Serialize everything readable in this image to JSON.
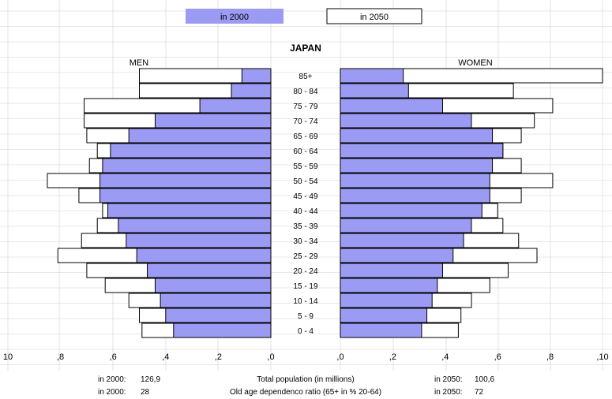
{
  "colors": {
    "series_2000": "#9b9bf3",
    "series_2050": "#ffffff",
    "outline": "#000000",
    "grid": "#d0d0d0"
  },
  "legend": {
    "item_2000": "in 2000",
    "item_2050": "in 2050"
  },
  "footer": {
    "row1": {
      "left_label": "in 2000:",
      "left_value": "126,9",
      "center": "Total population (in millions)",
      "right_label": "in 2050:",
      "right_value": "100,6"
    },
    "row2": {
      "left_label": "in 2000:",
      "left_value": "28",
      "center": "Old age dependenco ratio (65+ in % 20-64)",
      "right_label": "in 2050:",
      "right_value": "72"
    }
  },
  "chart_data": {
    "type": "bar",
    "orientation": "horizontal-pyramid",
    "title": "JAPAN",
    "men_label": "MEN",
    "women_label": "WOMEN",
    "categories": [
      "85+",
      "80 - 84",
      "75 - 79",
      "70 - 74",
      "65 - 69",
      "60 - 64",
      "55 - 59",
      "50 - 54",
      "45 - 49",
      "40 - 44",
      "35 - 39",
      "30 - 34",
      "25 - 29",
      "20 - 24",
      "15 - 19",
      "10 - 14",
      "5 - 9",
      "0 - 4"
    ],
    "xlim": [
      0,
      1.0
    ],
    "x_ticks_men": [
      "10",
      ",8",
      ",6",
      ",4",
      ",2",
      ",0"
    ],
    "x_ticks_women": [
      ",0",
      ",2",
      ",4",
      ",6",
      ",8",
      ",10"
    ],
    "tick_values_men": [
      1.0,
      0.8,
      0.6,
      0.4,
      0.2,
      0.0
    ],
    "tick_values_women": [
      0.0,
      0.2,
      0.4,
      0.6,
      0.8,
      1.0
    ],
    "legend_position": "top",
    "series": [
      {
        "name": "in 2000",
        "men": [
          0.11,
          0.15,
          0.27,
          0.44,
          0.54,
          0.61,
          0.64,
          0.65,
          0.65,
          0.62,
          0.58,
          0.55,
          0.51,
          0.47,
          0.44,
          0.42,
          0.4,
          0.37
        ],
        "women": [
          0.24,
          0.26,
          0.39,
          0.5,
          0.58,
          0.62,
          0.58,
          0.57,
          0.57,
          0.54,
          0.5,
          0.47,
          0.43,
          0.39,
          0.37,
          0.35,
          0.33,
          0.31
        ]
      },
      {
        "name": "in 2050",
        "men": [
          0.5,
          0.5,
          0.71,
          0.71,
          0.7,
          0.66,
          0.69,
          0.85,
          0.73,
          0.64,
          0.66,
          0.72,
          0.81,
          0.7,
          0.63,
          0.54,
          0.5,
          0.49
        ],
        "women": [
          1.0,
          0.66,
          0.81,
          0.74,
          0.69,
          0.62,
          0.69,
          0.81,
          0.69,
          0.6,
          0.62,
          0.68,
          0.75,
          0.64,
          0.57,
          0.5,
          0.46,
          0.45
        ]
      }
    ]
  }
}
